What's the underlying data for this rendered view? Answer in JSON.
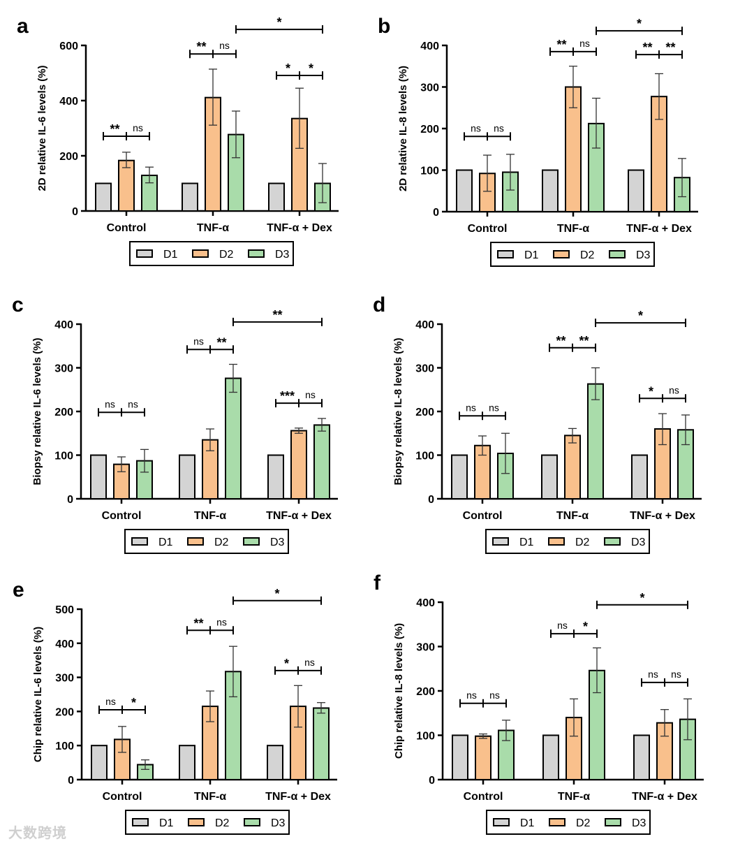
{
  "legend": [
    "D1",
    "D2",
    "D3"
  ],
  "colors": {
    "D1": "#d4d4d4",
    "D2": "#f9c08c",
    "D3": "#a9dcaa"
  },
  "watermark": "大数跨境",
  "chart_data": [
    {
      "type": "bar",
      "panel": "a",
      "ylabel": "2D relative IL-6  levels (%)",
      "ylim": [
        0,
        600
      ],
      "yticks": [
        0,
        200,
        400,
        600
      ],
      "categories": [
        "Control",
        "TNF-α",
        "TNF-α + Dex"
      ],
      "series": [
        {
          "name": "D1",
          "values": [
            100,
            100,
            100
          ],
          "err_low": [
            100,
            100,
            100
          ],
          "err_high": [
            100,
            100,
            100
          ]
        },
        {
          "name": "D2",
          "values": [
            183,
            411,
            335
          ],
          "err_low": [
            157,
            311,
            227
          ],
          "err_high": [
            213,
            514,
            445
          ]
        },
        {
          "name": "D3",
          "values": [
            129,
            277,
            100
          ],
          "err_low": [
            102,
            193,
            30
          ],
          "err_high": [
            159,
            362,
            172
          ]
        }
      ],
      "significance": [
        {
          "group": 0,
          "left": "**",
          "right": "ns",
          "level": 271
        },
        {
          "group": 1,
          "left": "**",
          "right": "ns",
          "level": 569
        },
        {
          "group": 2,
          "left": "*",
          "right": "*",
          "level": 491
        },
        {
          "from": "TNF-α D3",
          "to": "TNF-α + Dex D3",
          "label": "*",
          "level": 658
        }
      ]
    },
    {
      "type": "bar",
      "panel": "b",
      "ylabel": "2D relative IL-8  levels (%)",
      "ylim": [
        0,
        400
      ],
      "yticks": [
        0,
        100,
        200,
        300,
        400
      ],
      "categories": [
        "Control",
        "TNF-α",
        "TNF-α + Dex"
      ],
      "series": [
        {
          "name": "D1",
          "values": [
            100,
            100,
            100
          ],
          "err_low": [
            100,
            100,
            100
          ],
          "err_high": [
            100,
            100,
            100
          ]
        },
        {
          "name": "D2",
          "values": [
            92,
            300,
            277
          ],
          "err_low": [
            49,
            250,
            222
          ],
          "err_high": [
            136,
            350,
            332
          ]
        },
        {
          "name": "D3",
          "values": [
            95,
            212,
            82
          ],
          "err_low": [
            52,
            153,
            36
          ],
          "err_high": [
            138,
            273,
            128
          ]
        }
      ],
      "significance": [
        {
          "group": 0,
          "left": "ns",
          "right": "ns",
          "level": 181
        },
        {
          "group": 1,
          "left": "**",
          "right": "ns",
          "level": 385
        },
        {
          "group": 2,
          "left": "**",
          "right": "**",
          "level": 378
        },
        {
          "from": "TNF-α D3",
          "to": "TNF-α + Dex D3",
          "label": "*",
          "level": 435
        }
      ]
    },
    {
      "type": "bar",
      "panel": "c",
      "ylabel": "Biopsy relative IL-6  levels (%)",
      "ylim": [
        0,
        400
      ],
      "yticks": [
        0,
        100,
        200,
        300,
        400
      ],
      "categories": [
        "Control",
        "TNF-α",
        "TNF-α + Dex"
      ],
      "series": [
        {
          "name": "D1",
          "values": [
            100,
            100,
            100
          ],
          "err_low": [
            100,
            100,
            100
          ],
          "err_high": [
            100,
            100,
            100
          ]
        },
        {
          "name": "D2",
          "values": [
            79,
            135,
            156
          ],
          "err_low": [
            62,
            110,
            150
          ],
          "err_high": [
            96,
            160,
            162
          ]
        },
        {
          "name": "D3",
          "values": [
            87,
            276,
            169
          ],
          "err_low": [
            61,
            244,
            155
          ],
          "err_high": [
            113,
            308,
            184
          ]
        }
      ],
      "significance": [
        {
          "group": 0,
          "left": "ns",
          "right": "ns",
          "level": 198
        },
        {
          "group": 1,
          "left": "ns",
          "right": "**",
          "level": 342
        },
        {
          "group": 2,
          "left": "***",
          "right": "ns",
          "level": 219
        },
        {
          "from": "TNF-α D3",
          "to": "TNF-α + Dex D3",
          "label": "**",
          "level": 405
        }
      ]
    },
    {
      "type": "bar",
      "panel": "d",
      "ylabel": "Biopsy relative IL-8  levels (%)",
      "ylim": [
        0,
        400
      ],
      "yticks": [
        0,
        100,
        200,
        300,
        400
      ],
      "categories": [
        "Control",
        "TNF-α",
        "TNF-α + Dex"
      ],
      "series": [
        {
          "name": "D1",
          "values": [
            100,
            100,
            100
          ],
          "err_low": [
            100,
            100,
            100
          ],
          "err_high": [
            100,
            100,
            100
          ]
        },
        {
          "name": "D2",
          "values": [
            122,
            145,
            160
          ],
          "err_low": [
            100,
            128,
            124
          ],
          "err_high": [
            144,
            161,
            195
          ]
        },
        {
          "name": "D3",
          "values": [
            104,
            263,
            158
          ],
          "err_low": [
            58,
            227,
            124
          ],
          "err_high": [
            150,
            300,
            192
          ]
        }
      ],
      "significance": [
        {
          "group": 0,
          "left": "ns",
          "right": "ns",
          "level": 190
        },
        {
          "group": 1,
          "left": "**",
          "right": "**",
          "level": 346
        },
        {
          "group": 2,
          "left": "*",
          "right": "ns",
          "level": 230
        },
        {
          "from": "TNF-α D3",
          "to": "TNF-α + Dex D3",
          "label": "*",
          "level": 403
        }
      ]
    },
    {
      "type": "bar",
      "panel": "e",
      "ylabel": "Chip relative IL-6  levels (%)",
      "ylim": [
        0,
        500
      ],
      "yticks": [
        0,
        100,
        200,
        300,
        400,
        500
      ],
      "categories": [
        "Control",
        "TNF-α",
        "TNF-α + Dex"
      ],
      "series": [
        {
          "name": "D1",
          "values": [
            100,
            100,
            100
          ],
          "err_low": [
            100,
            100,
            100
          ],
          "err_high": [
            100,
            100,
            100
          ]
        },
        {
          "name": "D2",
          "values": [
            118,
            215,
            215
          ],
          "err_low": [
            80,
            170,
            154
          ],
          "err_high": [
            156,
            260,
            276
          ]
        },
        {
          "name": "D3",
          "values": [
            44,
            317,
            210
          ],
          "err_low": [
            30,
            243,
            195
          ],
          "err_high": [
            58,
            391,
            226
          ]
        }
      ],
      "significance": [
        {
          "group": 0,
          "left": "ns",
          "right": "*",
          "level": 205
        },
        {
          "group": 1,
          "left": "**",
          "right": "ns",
          "level": 438
        },
        {
          "group": 2,
          "left": "*",
          "right": "ns",
          "level": 320
        },
        {
          "from": "TNF-α D3",
          "to": "TNF-α + Dex D3",
          "label": "*",
          "level": 525
        }
      ]
    },
    {
      "type": "bar",
      "panel": "f",
      "ylabel": "Chip relative IL-8  levels (%)",
      "ylim": [
        0,
        400
      ],
      "yticks": [
        0,
        100,
        200,
        300,
        400
      ],
      "categories": [
        "Control",
        "TNF-α",
        "TNF-α + Dex"
      ],
      "series": [
        {
          "name": "D1",
          "values": [
            100,
            100,
            100
          ],
          "err_low": [
            100,
            100,
            100
          ],
          "err_high": [
            100,
            100,
            100
          ]
        },
        {
          "name": "D2",
          "values": [
            98,
            140,
            128
          ],
          "err_low": [
            93,
            98,
            98
          ],
          "err_high": [
            103,
            182,
            158
          ]
        },
        {
          "name": "D3",
          "values": [
            111,
            246,
            136
          ],
          "err_low": [
            88,
            196,
            90
          ],
          "err_high": [
            134,
            297,
            182
          ]
        }
      ],
      "significance": [
        {
          "group": 0,
          "left": "ns",
          "right": "ns",
          "level": 172
        },
        {
          "group": 1,
          "left": "ns",
          "right": "*",
          "level": 329
        },
        {
          "group": 2,
          "left": "ns",
          "right": "ns",
          "level": 219
        },
        {
          "from": "TNF-α D3",
          "to": "TNF-α + Dex D3",
          "label": "*",
          "level": 394
        }
      ]
    }
  ]
}
